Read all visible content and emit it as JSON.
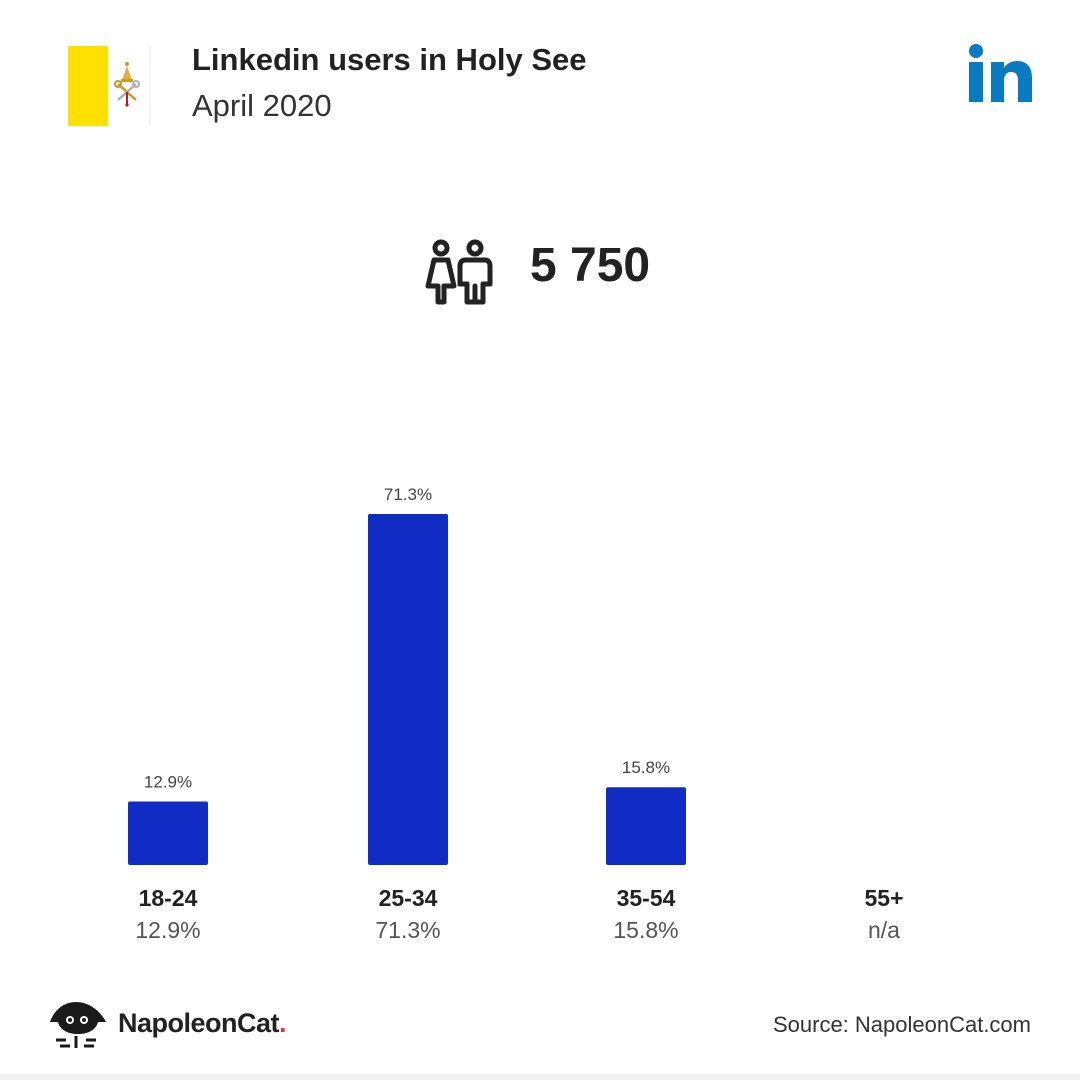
{
  "header": {
    "title": "Linkedin users in Holy See",
    "subtitle": "April 2020"
  },
  "total_users": "5 750",
  "icons": {
    "flag": "holy-see-flag-icon",
    "network": "linkedin-logo-icon",
    "users": "users-icon",
    "brand": "napoleoncat-logo-icon"
  },
  "colors": {
    "bar": "#102cc4",
    "linkedin": "#0a7bc2",
    "flag_yellow": "#ffe000",
    "brand_dot": "#e53935"
  },
  "chart_data": {
    "type": "bar",
    "categories": [
      "18-24",
      "25-34",
      "35-54",
      "55+"
    ],
    "values": [
      12.9,
      71.3,
      15.8,
      null
    ],
    "bar_labels": [
      "12.9%",
      "71.3%",
      "15.8%",
      ""
    ],
    "value_labels": [
      "12.9%",
      "71.3%",
      "15.8%",
      "n/a"
    ],
    "title": "",
    "xlabel": "",
    "ylabel": "",
    "ylim": [
      0,
      71.3
    ],
    "grid": false
  },
  "footer": {
    "brand_name": "NapoleonCat",
    "brand_dot": ".",
    "source": "Source: NapoleonCat.com"
  }
}
